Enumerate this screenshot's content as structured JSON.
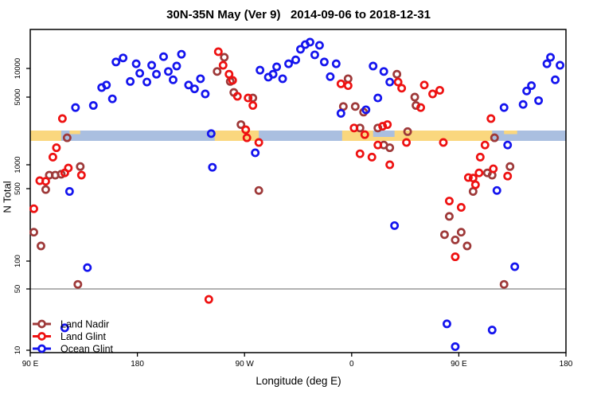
{
  "title": "30N-35N May (Ver 9)   2014-09-06 to 2018-12-31",
  "chart_data": {
    "type": "scatter",
    "title": "30N-35N May (Ver 9)   2014-09-06 to 2018-12-31",
    "xlabel": "Longitude (deg E)",
    "ylabel": "N Total",
    "x_axis": {
      "description": "longitude along axis in degrees east of 90E (axis wraps 90E-180-90W-0-90E-180)",
      "range": [
        0,
        450
      ],
      "ticks": [
        {
          "t": 0,
          "label": "90 E"
        },
        {
          "t": 90,
          "label": "180"
        },
        {
          "t": 180,
          "label": "90 W"
        },
        {
          "t": 270,
          "label": "0"
        },
        {
          "t": 360,
          "label": "90 E"
        },
        {
          "t": 450,
          "label": "180"
        }
      ]
    },
    "y_axis": {
      "scale": "log",
      "ticks": [
        10,
        50,
        100,
        500,
        1000,
        5000,
        10000
      ],
      "range": [
        10,
        26000
      ]
    },
    "reference_line": {
      "value": 50,
      "color": "#999999"
    },
    "band": {
      "n_top": 2180,
      "n_bottom": 1690,
      "base_color": "#AABFE0",
      "highlight_color": "#FAD77E",
      "base_segments": [
        [
          0,
          450
        ]
      ],
      "highlight_segments": [
        [
          0,
          26
        ],
        [
          155,
          192
        ],
        [
          262,
          388
        ]
      ],
      "speckle_segments": [
        [
          33,
          42
        ],
        [
          398,
          409
        ]
      ],
      "notch_segments": [
        [
          288,
          306
        ]
      ]
    },
    "legend": {
      "position": "bottom-left"
    },
    "series": [
      {
        "name": "Land Nadir",
        "color": "#9E3939",
        "points": [
          [
            31,
            1900
          ],
          [
            13,
            490
          ],
          [
            16,
            740
          ],
          [
            21,
            740
          ],
          [
            26,
            760
          ],
          [
            42,
            950
          ],
          [
            3,
            190
          ],
          [
            9,
            140
          ],
          [
            40,
            56
          ],
          [
            163,
            13100
          ],
          [
            157,
            9300
          ],
          [
            168,
            7300
          ],
          [
            171,
            5600
          ],
          [
            187,
            4900
          ],
          [
            177,
            2600
          ],
          [
            192,
            480
          ],
          [
            267,
            7800
          ],
          [
            308,
            8700
          ],
          [
            263,
            4000
          ],
          [
            273,
            4000
          ],
          [
            280,
            3500
          ],
          [
            323,
            5000
          ],
          [
            324,
            4100
          ],
          [
            277,
            2400
          ],
          [
            292,
            2400
          ],
          [
            297,
            1600
          ],
          [
            302,
            1500
          ],
          [
            317,
            2200
          ],
          [
            390,
            1900
          ],
          [
            403,
            950
          ],
          [
            384,
            790
          ],
          [
            388,
            740
          ],
          [
            372,
            470
          ],
          [
            352,
            270
          ],
          [
            348,
            180
          ],
          [
            362,
            190
          ],
          [
            357,
            160
          ],
          [
            367,
            140
          ],
          [
            398,
            56
          ]
        ]
      },
      {
        "name": "Land Glint",
        "color": "#EE1111",
        "points": [
          [
            27,
            3000
          ],
          [
            22,
            1500
          ],
          [
            19,
            1200
          ],
          [
            32,
            910
          ],
          [
            29,
            790
          ],
          [
            43,
            740
          ],
          [
            8,
            630
          ],
          [
            13,
            620
          ],
          [
            3,
            320
          ],
          [
            158,
            15000
          ],
          [
            162,
            10800
          ],
          [
            167,
            8700
          ],
          [
            170,
            7500
          ],
          [
            174,
            5100
          ],
          [
            183,
            4900
          ],
          [
            187,
            4100
          ],
          [
            181,
            2300
          ],
          [
            182,
            1900
          ],
          [
            192,
            1700
          ],
          [
            261,
            6900
          ],
          [
            267,
            6600
          ],
          [
            272,
            2400
          ],
          [
            281,
            2050
          ],
          [
            296,
            2500
          ],
          [
            300,
            2600
          ],
          [
            292,
            1600
          ],
          [
            302,
            1000
          ],
          [
            277,
            1300
          ],
          [
            287,
            1200
          ],
          [
            309,
            7200
          ],
          [
            312,
            6200
          ],
          [
            331,
            6700
          ],
          [
            344,
            5900
          ],
          [
            338,
            5400
          ],
          [
            328,
            3900
          ],
          [
            316,
            1700
          ],
          [
            347,
            1700
          ],
          [
            352,
            380
          ],
          [
            362,
            330
          ],
          [
            387,
            3000
          ],
          [
            382,
            1600
          ],
          [
            378,
            1200
          ],
          [
            389,
            890
          ],
          [
            401,
            720
          ],
          [
            377,
            790
          ],
          [
            368,
            690
          ],
          [
            372,
            680
          ],
          [
            374,
            560
          ],
          [
            357,
            110
          ],
          [
            150,
            38
          ]
        ]
      },
      {
        "name": "Ocean Glint",
        "color": "#1414EE",
        "points": [
          [
            38,
            3900
          ],
          [
            53,
            4100
          ],
          [
            60,
            6300
          ],
          [
            64,
            6700
          ],
          [
            69,
            4800
          ],
          [
            72,
            11700
          ],
          [
            78,
            12900
          ],
          [
            84,
            7300
          ],
          [
            89,
            11200
          ],
          [
            92,
            8900
          ],
          [
            98,
            7200
          ],
          [
            102,
            10800
          ],
          [
            106,
            8700
          ],
          [
            112,
            13300
          ],
          [
            116,
            9300
          ],
          [
            120,
            7600
          ],
          [
            123,
            10600
          ],
          [
            127,
            14100
          ],
          [
            133,
            6700
          ],
          [
            138,
            6100
          ],
          [
            143,
            7800
          ],
          [
            147,
            5400
          ],
          [
            152,
            2100
          ],
          [
            153,
            930
          ],
          [
            189,
            1330
          ],
          [
            193,
            9600
          ],
          [
            200,
            8100
          ],
          [
            204,
            8700
          ],
          [
            207,
            10400
          ],
          [
            212,
            7800
          ],
          [
            217,
            11200
          ],
          [
            223,
            12300
          ],
          [
            227,
            15900
          ],
          [
            231,
            17800
          ],
          [
            235,
            18900
          ],
          [
            239,
            13900
          ],
          [
            243,
            17500
          ],
          [
            247,
            11700
          ],
          [
            252,
            8200
          ],
          [
            257,
            11200
          ],
          [
            261,
            3400
          ],
          [
            282,
            3700
          ],
          [
            288,
            10600
          ],
          [
            292,
            4900
          ],
          [
            297,
            9300
          ],
          [
            302,
            7200
          ],
          [
            306,
            220
          ],
          [
            392,
            480
          ],
          [
            398,
            3900
          ],
          [
            401,
            1600
          ],
          [
            407,
            87
          ],
          [
            414,
            4200
          ],
          [
            417,
            5800
          ],
          [
            421,
            6600
          ],
          [
            427,
            4600
          ],
          [
            434,
            11200
          ],
          [
            437,
            13100
          ],
          [
            441,
            7600
          ],
          [
            445,
            10800
          ],
          [
            350,
            20
          ],
          [
            388,
            17
          ],
          [
            357,
            11
          ],
          [
            48,
            85
          ],
          [
            33,
            470
          ],
          [
            29,
            18
          ]
        ]
      }
    ]
  }
}
